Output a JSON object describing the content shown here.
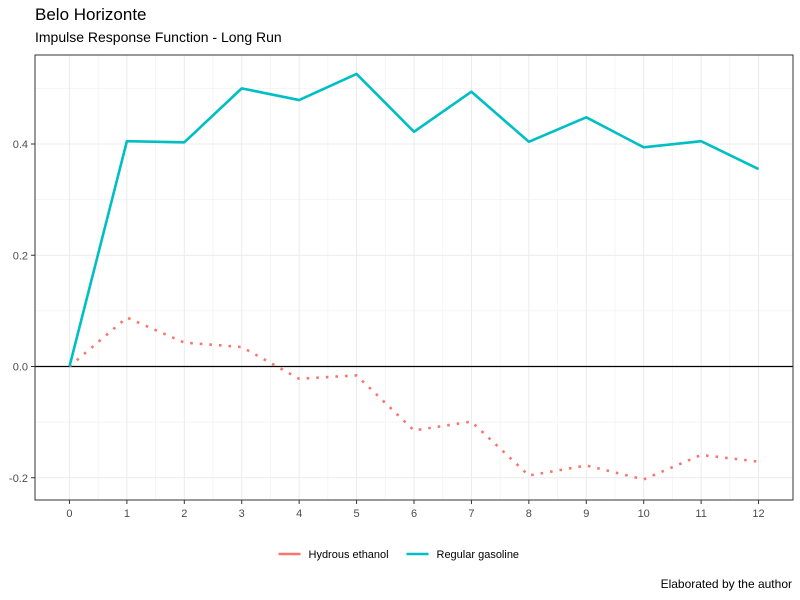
{
  "chart_data": {
    "type": "line",
    "title": "Belo Horizonte",
    "subtitle": "Impulse Response Function - Long Run",
    "caption": "Elaborated by the author",
    "xlabel": "",
    "ylabel": "",
    "x": [
      0,
      1,
      2,
      3,
      4,
      5,
      6,
      7,
      8,
      9,
      10,
      11,
      12
    ],
    "x_ticks": [
      "0",
      "1",
      "2",
      "3",
      "4",
      "5",
      "6",
      "7",
      "8",
      "9",
      "10",
      "11",
      "12"
    ],
    "y_ticks": [
      "-0.2",
      "0.0",
      "0.2",
      "0.4"
    ],
    "y_tick_values": [
      -0.2,
      0.0,
      0.2,
      0.4
    ],
    "xlim": [
      -0.6,
      12.6
    ],
    "ylim": [
      -0.24,
      0.56
    ],
    "reference_line_y": 0,
    "grid": true,
    "legend_position": "bottom",
    "series": [
      {
        "name": "Hydrous ethanol",
        "color": "#F8766D",
        "linestyle": "dotted",
        "values": [
          0.0,
          0.088,
          0.043,
          0.035,
          -0.022,
          -0.016,
          -0.115,
          -0.099,
          -0.196,
          -0.178,
          -0.203,
          -0.159,
          -0.171
        ]
      },
      {
        "name": "Regular gasoline",
        "color": "#00BFC4",
        "linestyle": "solid",
        "values": [
          0.0,
          0.405,
          0.403,
          0.5,
          0.479,
          0.526,
          0.422,
          0.494,
          0.404,
          0.448,
          0.394,
          0.405,
          0.355
        ]
      }
    ]
  }
}
